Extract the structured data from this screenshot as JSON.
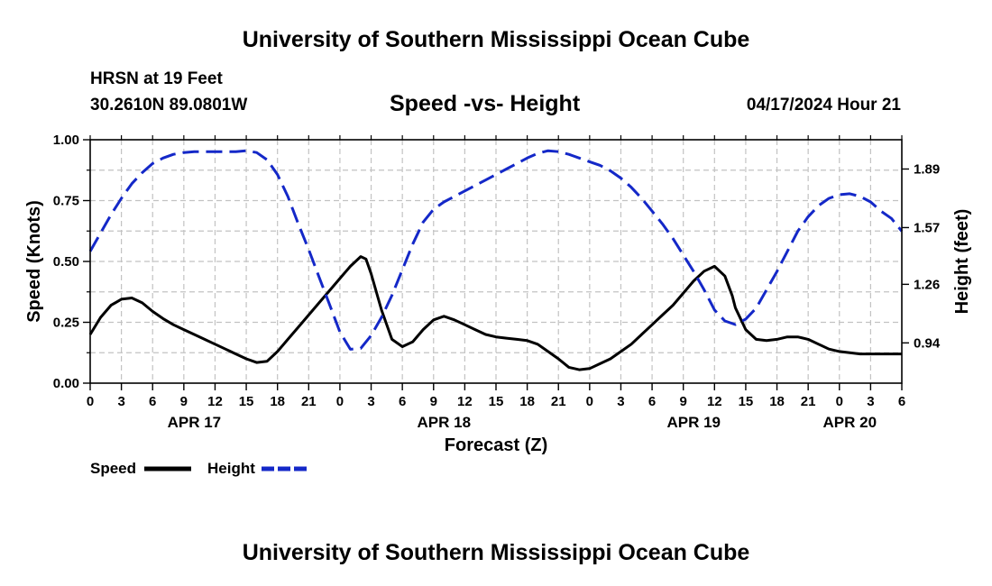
{
  "header": {
    "main_title": "University of Southern Mississippi Ocean Cube",
    "station": "HRSN at 19 Feet",
    "coords": "30.2610N  89.0801W",
    "issued": "04/17/2024 Hour 21",
    "bottom_title": "University of Southern Mississippi Ocean Cube"
  },
  "chart_data": {
    "type": "line",
    "title": "Speed -vs- Height",
    "xlabel": "Forecast (Z)",
    "ylabel": "Speed (Knots)",
    "y2label": "Height (feet)",
    "ylim": [
      0,
      1
    ],
    "yticks": [
      "0.00",
      "0.25",
      "0.50",
      "0.75",
      "1.00"
    ],
    "y2ticks": [
      "0.94",
      "1.26",
      "1.57",
      "1.89"
    ],
    "y2lim": [
      0.72,
      2.05
    ],
    "xlim": [
      0,
      78
    ],
    "xticks": [
      "0",
      "3",
      "6",
      "9",
      "12",
      "15",
      "18",
      "21",
      "0",
      "3",
      "6",
      "9",
      "12",
      "15",
      "18",
      "21",
      "0",
      "3",
      "6",
      "9",
      "12",
      "15",
      "18",
      "21",
      "0",
      "3",
      "6"
    ],
    "date_labels": [
      {
        "label": "APR 17",
        "x": 10
      },
      {
        "label": "APR 18",
        "x": 34
      },
      {
        "label": "APR 19",
        "x": 58
      },
      {
        "label": "APR 20",
        "x": 73
      }
    ],
    "grid": true,
    "legend_position": "bottom-left",
    "series": [
      {
        "name": "Speed",
        "axis": "left",
        "color": "#000000",
        "dash": "solid",
        "x": [
          0,
          1,
          2,
          3,
          4,
          5,
          6,
          7,
          8,
          9,
          10,
          11,
          12,
          13,
          14,
          15,
          16,
          17,
          18,
          19,
          20,
          21,
          22,
          23,
          24,
          25,
          26,
          26.5,
          27,
          28,
          29,
          30,
          31,
          32,
          33,
          34,
          35,
          36,
          37,
          38,
          39,
          40,
          41,
          42,
          43,
          44,
          45,
          46,
          47,
          48,
          49,
          50,
          51,
          52,
          53,
          54,
          55,
          56,
          57,
          58,
          59,
          60,
          61,
          61.7,
          62,
          63,
          64,
          65,
          66,
          67,
          68,
          69,
          70,
          71,
          72,
          73,
          74,
          75,
          76,
          77,
          78
        ],
        "values": [
          0.2,
          0.27,
          0.32,
          0.345,
          0.35,
          0.33,
          0.295,
          0.265,
          0.24,
          0.22,
          0.2,
          0.18,
          0.16,
          0.14,
          0.12,
          0.1,
          0.085,
          0.09,
          0.13,
          0.18,
          0.23,
          0.28,
          0.33,
          0.38,
          0.43,
          0.48,
          0.52,
          0.51,
          0.45,
          0.3,
          0.18,
          0.15,
          0.17,
          0.22,
          0.26,
          0.275,
          0.26,
          0.24,
          0.22,
          0.2,
          0.19,
          0.185,
          0.18,
          0.175,
          0.16,
          0.13,
          0.1,
          0.065,
          0.055,
          0.06,
          0.08,
          0.1,
          0.13,
          0.16,
          0.2,
          0.24,
          0.28,
          0.32,
          0.37,
          0.42,
          0.46,
          0.48,
          0.44,
          0.36,
          0.31,
          0.22,
          0.18,
          0.175,
          0.18,
          0.19,
          0.19,
          0.18,
          0.16,
          0.14,
          0.13,
          0.125,
          0.12,
          0.12,
          0.12,
          0.12,
          0.12
        ]
      },
      {
        "name": "Height",
        "axis": "right",
        "color": "#1428c8",
        "dash": "dashed",
        "x": [
          0,
          1,
          2,
          3,
          4,
          5,
          6,
          7,
          8,
          9,
          10,
          11,
          12,
          13,
          14,
          15,
          16,
          17,
          18,
          19,
          20,
          21,
          22,
          23,
          24,
          25,
          26,
          27,
          28,
          29,
          30,
          31,
          32,
          33,
          34,
          35,
          36,
          37,
          38,
          39,
          40,
          41,
          42,
          43,
          44,
          45,
          46,
          47,
          48,
          49,
          50,
          51,
          52,
          53,
          54,
          55,
          56,
          57,
          58,
          59,
          60,
          61,
          62,
          63,
          64,
          65,
          66,
          67,
          68,
          69,
          70,
          71,
          72,
          73,
          74,
          75,
          76,
          77,
          78
        ],
        "values": [
          1.44,
          1.54,
          1.64,
          1.73,
          1.81,
          1.87,
          1.92,
          1.95,
          1.97,
          1.98,
          1.985,
          1.985,
          1.985,
          1.985,
          1.985,
          1.99,
          1.98,
          1.94,
          1.86,
          1.74,
          1.59,
          1.45,
          1.3,
          1.15,
          1.0,
          0.905,
          0.91,
          0.98,
          1.08,
          1.2,
          1.34,
          1.48,
          1.6,
          1.67,
          1.71,
          1.74,
          1.77,
          1.8,
          1.83,
          1.86,
          1.89,
          1.92,
          1.95,
          1.975,
          1.99,
          1.985,
          1.97,
          1.95,
          1.93,
          1.91,
          1.88,
          1.84,
          1.79,
          1.73,
          1.66,
          1.59,
          1.51,
          1.42,
          1.33,
          1.23,
          1.12,
          1.06,
          1.04,
          1.07,
          1.13,
          1.23,
          1.33,
          1.44,
          1.55,
          1.63,
          1.69,
          1.73,
          1.75,
          1.755,
          1.74,
          1.71,
          1.66,
          1.62,
          1.55
        ]
      }
    ]
  }
}
